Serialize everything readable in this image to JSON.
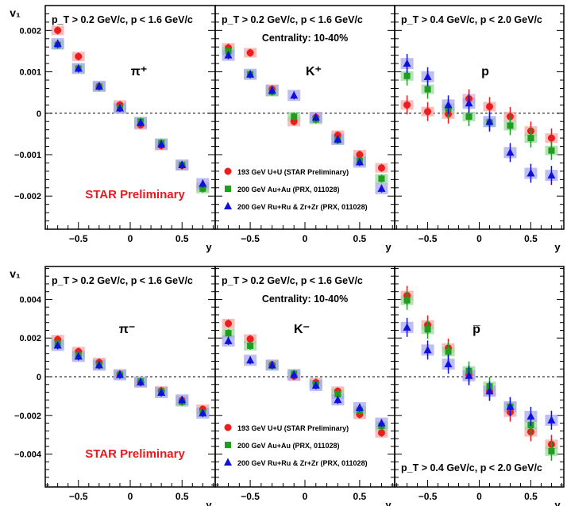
{
  "preliminary_label": "STAR Preliminary",
  "legend": [
    {
      "label": "193 GeV U+U (STAR Preliminary)",
      "color": "#ee1c1c",
      "marker": "circle"
    },
    {
      "label": "200 GeV Au+Au (PRX, 011028)",
      "color": "#1e9e1e",
      "marker": "square"
    },
    {
      "label": "200 GeV Ru+Ru & Zr+Zr (PRX, 011028)",
      "color": "#1010dd",
      "marker": "triangle"
    }
  ],
  "band_colors": [
    "#f4a8a8",
    "#9ed89e",
    "#a8a8ee"
  ],
  "chart_data": [
    {
      "type": "scatter",
      "panel": "top-left",
      "kinematics": "p_T > 0.2 GeV/c, p < 1.6 GeV/c",
      "centrality": "",
      "particle": "π⁺",
      "ylabel": "v₁",
      "xlabel": "y",
      "xlim": [
        -0.82,
        0.82
      ],
      "ylim": [
        -0.0028,
        0.0026
      ],
      "yticks": [
        "0.002",
        "0.001",
        "0",
        "−0.001",
        "−0.002"
      ],
      "ytick_values": [
        0.002,
        0.001,
        0,
        -0.001,
        -0.002
      ],
      "xticks": [
        "−0.5",
        "0",
        "0.5"
      ],
      "xtick_values": [
        -0.5,
        0,
        0.5
      ],
      "show_legend": false,
      "show_prelim": true,
      "series": [
        {
          "x": [
            -0.7,
            -0.5,
            -0.3,
            -0.1,
            0.1,
            0.3,
            0.5,
            0.7
          ],
          "values": [
            0.002,
            0.00137,
            0.00065,
            0.0002,
            -0.00028,
            -0.00078,
            -0.00126,
            -0.00178
          ]
        },
        {
          "x": [
            -0.7,
            -0.5,
            -0.3,
            -0.1,
            0.1,
            0.3,
            0.5,
            0.7
          ],
          "values": [
            0.00165,
            0.00108,
            0.00064,
            0.00013,
            -0.0002,
            -0.00072,
            -0.00125,
            -0.00182
          ]
        },
        {
          "x": [
            -0.7,
            -0.5,
            -0.3,
            -0.1,
            0.1,
            0.3,
            0.5,
            0.7
          ],
          "values": [
            0.00168,
            0.00108,
            0.00065,
            0.00012,
            -0.00023,
            -0.00075,
            -0.00125,
            -0.0017
          ]
        }
      ]
    },
    {
      "type": "scatter",
      "panel": "top-middle",
      "kinematics": "p_T > 0.2 GeV/c, p < 1.6 GeV/c",
      "centrality": "Centrality: 10-40%",
      "particle": "K⁺",
      "ylabel": "",
      "xlabel": "y",
      "xlim": [
        -0.82,
        0.82
      ],
      "ylim": [
        -0.0028,
        0.0026
      ],
      "yticks": [],
      "ytick_values": [],
      "xticks": [
        "−0.5",
        "0",
        "0.5"
      ],
      "xtick_values": [
        -0.5,
        0,
        0.5
      ],
      "show_legend": true,
      "show_prelim": false,
      "series": [
        {
          "x": [
            -0.7,
            -0.5,
            -0.3,
            -0.1,
            0.1,
            0.3,
            0.5,
            0.7
          ],
          "values": [
            0.00158,
            0.00146,
            0.00058,
            -0.0002,
            -0.0001,
            -0.00053,
            -0.001,
            -0.00132
          ]
        },
        {
          "x": [
            -0.7,
            -0.5,
            -0.3,
            -0.1,
            0.1,
            0.3,
            0.5,
            0.7
          ],
          "values": [
            0.0015,
            0.00094,
            0.00052,
            -8e-05,
            -0.00015,
            -0.00065,
            -0.00115,
            -0.00158
          ]
        },
        {
          "x": [
            -0.7,
            -0.5,
            -0.3,
            -0.1,
            0.1,
            0.3,
            0.5,
            0.7
          ],
          "values": [
            0.0014,
            0.00094,
            0.00055,
            0.00043,
            -0.0001,
            -0.00063,
            -0.00118,
            -0.00182
          ]
        }
      ]
    },
    {
      "type": "scatter",
      "panel": "top-right",
      "kinematics": "p_T > 0.4 GeV/c, p < 2.0 GeV/c",
      "centrality": "",
      "particle": "p",
      "ylabel": "",
      "xlabel": "y",
      "xlim": [
        -0.82,
        0.82
      ],
      "ylim": [
        -0.0028,
        0.0026
      ],
      "yticks": [],
      "ytick_values": [],
      "xticks": [
        "−0.5",
        "0",
        "0.5"
      ],
      "xtick_values": [
        -0.5,
        0,
        0.5
      ],
      "show_legend": false,
      "show_prelim": false,
      "series": [
        {
          "x": [
            -0.7,
            -0.5,
            -0.3,
            -0.1,
            0.1,
            0.3,
            0.5,
            0.7
          ],
          "values": [
            0.0002,
            4e-05,
            -2e-05,
            0.00035,
            0.00016,
            -8e-05,
            -0.00043,
            -0.0006
          ]
        },
        {
          "x": [
            -0.7,
            -0.5,
            -0.3,
            -0.1,
            0.1,
            0.3,
            0.5,
            0.7
          ],
          "values": [
            0.0009,
            0.00058,
            0.00012,
            -8e-05,
            -0.00022,
            -0.0003,
            -0.0006,
            -0.0009
          ]
        },
        {
          "x": [
            -0.7,
            -0.5,
            -0.3,
            -0.1,
            0.1,
            0.3,
            0.5,
            0.7
          ],
          "values": [
            0.0012,
            0.00088,
            0.0002,
            0.00024,
            -0.0002,
            -0.00095,
            -0.00145,
            -0.0015
          ]
        }
      ]
    },
    {
      "type": "scatter",
      "panel": "bottom-left",
      "kinematics": "p_T > 0.2 GeV/c, p < 1.6 GeV/c",
      "centrality": "",
      "particle": "π⁻",
      "ylabel": "v₁",
      "xlabel": "y",
      "xlim": [
        -0.82,
        0.82
      ],
      "ylim": [
        -0.0057,
        0.0057
      ],
      "yticks": [
        "0.004",
        "0.002",
        "0",
        "−0.002",
        "−0.004"
      ],
      "ytick_values": [
        0.004,
        0.002,
        0,
        -0.002,
        -0.004
      ],
      "xticks": [
        "−0.5",
        "0",
        "0.5"
      ],
      "xtick_values": [
        -0.5,
        0,
        0.5
      ],
      "show_legend": false,
      "show_prelim": true,
      "series": [
        {
          "x": [
            -0.7,
            -0.5,
            -0.3,
            -0.1,
            0.1,
            0.3,
            0.5,
            0.7
          ],
          "values": [
            0.00192,
            0.0013,
            0.00074,
            0.00013,
            -0.00028,
            -0.00073,
            -0.00122,
            -0.00168
          ]
        },
        {
          "x": [
            -0.7,
            -0.5,
            -0.3,
            -0.1,
            0.1,
            0.3,
            0.5,
            0.7
          ],
          "values": [
            0.0017,
            0.0011,
            0.0006,
            0.0001,
            -0.00025,
            -0.00078,
            -0.0013,
            -0.00185
          ]
        },
        {
          "x": [
            -0.7,
            -0.5,
            -0.3,
            -0.1,
            0.1,
            0.3,
            0.5,
            0.7
          ],
          "values": [
            0.00162,
            0.00105,
            0.0006,
            0.0001,
            -0.00028,
            -0.00082,
            -0.0012,
            -0.00188
          ]
        }
      ]
    },
    {
      "type": "scatter",
      "panel": "bottom-middle",
      "kinematics": "p_T > 0.2 GeV/c, p < 1.6 GeV/c",
      "centrality": "Centrality: 10-40%",
      "particle": "K⁻",
      "ylabel": "",
      "xlabel": "y",
      "xlim": [
        -0.82,
        0.82
      ],
      "ylim": [
        -0.0057,
        0.0057
      ],
      "yticks": [],
      "ytick_values": [],
      "xticks": [
        "−0.5",
        "0",
        "0.5"
      ],
      "xtick_values": [
        -0.5,
        0,
        0.5
      ],
      "show_legend": true,
      "show_prelim": false,
      "series": [
        {
          "x": [
            -0.7,
            -0.5,
            -0.3,
            -0.1,
            0.1,
            0.3,
            0.5,
            0.7
          ],
          "values": [
            0.00275,
            0.00195,
            0.00062,
            3e-05,
            -0.0003,
            -0.00075,
            -0.00195,
            -0.0029
          ]
        },
        {
          "x": [
            -0.7,
            -0.5,
            -0.3,
            -0.1,
            0.1,
            0.3,
            0.5,
            0.7
          ],
          "values": [
            0.00225,
            0.0016,
            0.00058,
            0.00015,
            -0.0004,
            -0.0009,
            -0.00175,
            -0.00255
          ]
        },
        {
          "x": [
            -0.7,
            -0.5,
            -0.3,
            -0.1,
            0.1,
            0.3,
            0.5,
            0.7
          ],
          "values": [
            0.00185,
            0.00085,
            0.0006,
            0.0001,
            -0.00045,
            -0.0012,
            -0.0016,
            -0.0024
          ]
        }
      ]
    },
    {
      "type": "scatter",
      "panel": "bottom-right",
      "kinematics": "p_T > 0.4 GeV/c, p < 2.0 GeV/c",
      "centrality": "",
      "particle": "p̅",
      "ylabel": "",
      "xlabel": "y",
      "xlim": [
        -0.82,
        0.82
      ],
      "ylim": [
        -0.0057,
        0.0057
      ],
      "yticks": [],
      "ytick_values": [],
      "xticks": [
        "−0.5",
        "0",
        "0.5"
      ],
      "xtick_values": [
        -0.5,
        0,
        0.5
      ],
      "show_legend": false,
      "show_prelim": false,
      "series": [
        {
          "x": [
            -0.7,
            -0.5,
            -0.3,
            -0.1,
            0.1,
            0.3,
            0.5,
            0.7
          ],
          "values": [
            0.0042,
            0.00268,
            0.00148,
            0.0001,
            -0.00075,
            -0.00183,
            -0.00285,
            -0.0035
          ]
        },
        {
          "x": [
            -0.7,
            -0.5,
            -0.3,
            -0.1,
            0.1,
            0.3,
            0.5,
            0.7
          ],
          "values": [
            0.00395,
            0.00245,
            0.0013,
            0.0003,
            -0.0005,
            -0.00155,
            -0.0025,
            -0.00385
          ]
        },
        {
          "x": [
            -0.7,
            -0.5,
            -0.3,
            -0.1,
            0.1,
            0.3,
            0.5,
            0.7
          ],
          "values": [
            0.00255,
            0.00138,
            0.00065,
            5e-05,
            -0.00075,
            -0.00155,
            -0.00205,
            -0.00225
          ]
        }
      ]
    }
  ]
}
